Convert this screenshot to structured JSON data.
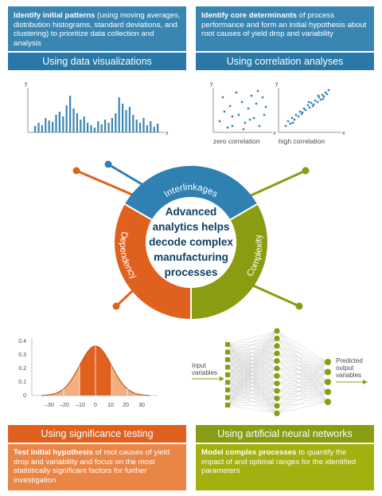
{
  "top_left": {
    "description_bold": "Identify initial patterns",
    "description_rest": " (using moving averages, distribution histograms, standard deviations, and clustering) to prioritize data collection and analysis",
    "header": "Using data visualizations",
    "color": "#3a86b3",
    "header_color": "#2a78a7"
  },
  "top_right": {
    "description_bold": "Identify core determinants",
    "description_rest": " of process performance and form an initial hypothesis about root causes of yield drop and variability",
    "header": "Using correlation analyses",
    "color": "#3a86b3",
    "header_color": "#2a78a7",
    "plot1_caption": "zero correlation",
    "plot2_caption": "high correlation"
  },
  "center": {
    "text": [
      "Advanced",
      "analytics helps",
      "decode complex",
      "manufacturing",
      "processes"
    ],
    "text_color": "#0e3e62",
    "segments": [
      {
        "label": "Interlinkages",
        "color": "#2f81b2"
      },
      {
        "label": "Dependency",
        "color": "#e0611e"
      },
      {
        "label": "Complexity",
        "color": "#8a9c11"
      }
    ]
  },
  "axis_letters": {
    "x": "x",
    "y": "y"
  },
  "normal_chart": {
    "y_ticks": [
      "0.4",
      "0.3",
      "0.2",
      "0.1",
      "0"
    ],
    "x_ticks": [
      "–30",
      "–20",
      "–10",
      "0",
      "10",
      "20",
      "30"
    ]
  },
  "neural_net": {
    "input_label": [
      "Input",
      "variables"
    ],
    "output_label": [
      "Predicted",
      "output",
      "variables"
    ],
    "color": "#8a9c11"
  },
  "bottom_left": {
    "header": "Using significance testing",
    "description_bold": "Test initial hypothesis",
    "description_rest": " of root causes of yield drop and variability and focus on the most statistically significant factors for further investigation",
    "color": "#e98646",
    "header_color": "#e0611e"
  },
  "bottom_right": {
    "header": "Using artificial neural networks",
    "description_bold": "Model complex processes",
    "description_rest": " to quantify the impact of and optimal ranges for the identified parameters",
    "color": "#a4b010",
    "header_color": "#8a9c11"
  }
}
